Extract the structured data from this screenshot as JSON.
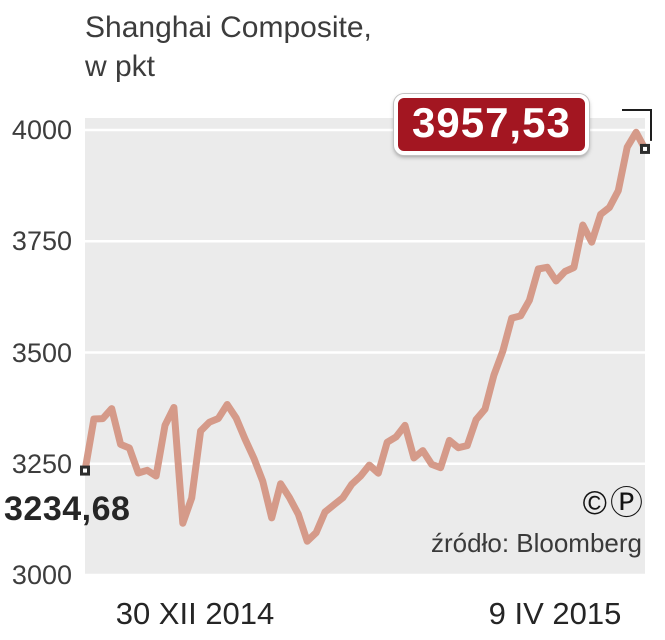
{
  "header": {
    "title_line1": "Shanghai Composite,",
    "title_line2": "w pkt"
  },
  "chart_data": {
    "type": "line",
    "title": "Shanghai Composite, w pkt",
    "xlabel": "",
    "ylabel": "pkt",
    "ylim": [
      3000,
      4027
    ],
    "yticks": [
      3000,
      3250,
      3500,
      3750,
      4000
    ],
    "x_tick_labels": [
      "30 XII 2014",
      "9 IV 2015"
    ],
    "grid": true,
    "legend": false,
    "line_color": "#d59a89",
    "plot_bg": "#ebebeb",
    "grid_color": "#ffffff",
    "series": [
      {
        "name": "Shanghai Composite",
        "values": [
          3234.68,
          3350.52,
          3351.45,
          3373.95,
          3293.46,
          3285.41,
          3229.32,
          3235.3,
          3222.44,
          3336.45,
          3376.5,
          3116.35,
          3173.05,
          3323.61,
          3343.34,
          3351.76,
          3383.18,
          3352.96,
          3305.74,
          3262.3,
          3210.36,
          3128.3,
          3204.91,
          3174.13,
          3136.53,
          3075.91,
          3095.12,
          3141.59,
          3157.7,
          3173.42,
          3203.83,
          3222.36,
          3246.91,
          3228.84,
          3298.36,
          3310.3,
          3336.28,
          3263.05,
          3279.53,
          3248.48,
          3241.19,
          3302.41,
          3286.07,
          3290.9,
          3349.32,
          3372.91,
          3449.3,
          3502.85,
          3577.3,
          3582.27,
          3617.32,
          3687.73,
          3691.41,
          3660.73,
          3682.1,
          3691.1,
          3786.57,
          3747.9,
          3810.29,
          3825.78,
          3863.93,
          3961.38,
          3994.81,
          3957.53
        ]
      }
    ],
    "annotations": {
      "start_value": 3234.68,
      "start_label": "3234,68",
      "end_value": 3957.53,
      "end_label": "3957,53"
    }
  },
  "footer": {
    "copyright_icon": "©",
    "p_icon": "Ⓟ",
    "source": "źródło: Bloomberg"
  }
}
